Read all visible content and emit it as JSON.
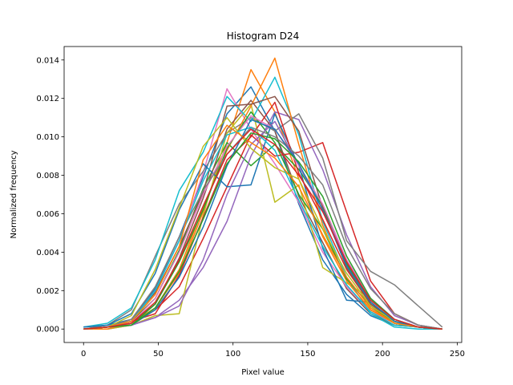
{
  "chart_data": {
    "type": "line",
    "title": "Histogram D24",
    "xlabel": "Pixel value",
    "ylabel": "Normalized frequency",
    "xlim": [
      -13,
      253
    ],
    "ylim": [
      -0.0007,
      0.0147
    ],
    "xticks": [
      0,
      50,
      100,
      150,
      200,
      250
    ],
    "xtick_labels": [
      "0",
      "50",
      "100",
      "150",
      "200",
      "250"
    ],
    "yticks": [
      0.0,
      0.002,
      0.004,
      0.006,
      0.008,
      0.01,
      0.012,
      0.014
    ],
    "ytick_labels": [
      "0.000",
      "0.002",
      "0.004",
      "0.006",
      "0.008",
      "0.010",
      "0.012",
      "0.014"
    ],
    "grid": false,
    "legend": false,
    "x": [
      0,
      16,
      32,
      48,
      64,
      80,
      96,
      112,
      128,
      144,
      160,
      176,
      192,
      208,
      224,
      240
    ],
    "series": [
      {
        "color": "#1f77b4",
        "values": [
          0.0001,
          0.0002,
          0.0005,
          0.0021,
          0.0048,
          0.0079,
          0.0112,
          0.0126,
          0.0103,
          0.0065,
          0.0036,
          0.0018,
          0.0007,
          0.0002,
          0.0001,
          0.0
        ]
      },
      {
        "color": "#ff7f0e",
        "values": [
          0.0,
          0.0001,
          0.0003,
          0.0011,
          0.0029,
          0.0061,
          0.0097,
          0.0135,
          0.0113,
          0.0078,
          0.0048,
          0.0025,
          0.001,
          0.0003,
          0.0001,
          0.0
        ]
      },
      {
        "color": "#2ca02c",
        "values": [
          0.0,
          0.0001,
          0.0004,
          0.0016,
          0.0041,
          0.0073,
          0.0097,
          0.0085,
          0.0096,
          0.0083,
          0.0064,
          0.0034,
          0.0014,
          0.0004,
          0.0001,
          0.0
        ]
      },
      {
        "color": "#d62728",
        "values": [
          0.0,
          0.0001,
          0.0002,
          0.001,
          0.0022,
          0.0047,
          0.0074,
          0.0101,
          0.009,
          0.0092,
          0.0097,
          0.0061,
          0.0025,
          0.0008,
          0.0002,
          0.0
        ]
      },
      {
        "color": "#9467bd",
        "values": [
          0.0,
          0.0,
          0.0002,
          0.0006,
          0.0015,
          0.0032,
          0.0056,
          0.009,
          0.0113,
          0.0109,
          0.0083,
          0.0049,
          0.0022,
          0.0007,
          0.0002,
          0.0
        ]
      },
      {
        "color": "#8c564b",
        "values": [
          0.0,
          0.0001,
          0.0003,
          0.0013,
          0.0037,
          0.0068,
          0.0104,
          0.0119,
          0.0103,
          0.0069,
          0.0045,
          0.0021,
          0.0008,
          0.0002,
          0.0001,
          0.0
        ]
      },
      {
        "color": "#e377c2",
        "values": [
          0.0,
          0.0001,
          0.0004,
          0.002,
          0.0046,
          0.0081,
          0.0125,
          0.0104,
          0.0086,
          0.0066,
          0.004,
          0.0022,
          0.0009,
          0.0003,
          0.0001,
          0.0
        ]
      },
      {
        "color": "#7f7f7f",
        "values": [
          0.0,
          0.0002,
          0.001,
          0.0038,
          0.0065,
          0.0082,
          0.0102,
          0.011,
          0.0103,
          0.0112,
          0.0089,
          0.0046,
          0.003,
          0.0023,
          0.0012,
          0.0001
        ]
      },
      {
        "color": "#bcbd22",
        "values": [
          0.0,
          0.0,
          0.0002,
          0.0007,
          0.0008,
          0.0059,
          0.0102,
          0.0117,
          0.0066,
          0.0075,
          0.0032,
          0.0024,
          0.0016,
          0.0004,
          0.0001,
          0.0
        ]
      },
      {
        "color": "#17becf",
        "values": [
          0.0001,
          0.0003,
          0.0011,
          0.0036,
          0.0072,
          0.0092,
          0.0121,
          0.0108,
          0.0131,
          0.0101,
          0.0056,
          0.0027,
          0.0008,
          0.0001,
          0.0,
          0.0
        ]
      },
      {
        "color": "#1f77b4",
        "values": [
          0.0001,
          0.0002,
          0.0008,
          0.0029,
          0.0062,
          0.0086,
          0.0074,
          0.0075,
          0.0112,
          0.0085,
          0.0042,
          0.0015,
          0.0014,
          0.0004,
          0.0001,
          0.0
        ]
      },
      {
        "color": "#ff7f0e",
        "values": [
          0.0,
          0.0,
          0.0003,
          0.0011,
          0.0031,
          0.0063,
          0.0093,
          0.0116,
          0.0141,
          0.0096,
          0.0054,
          0.0025,
          0.001,
          0.0003,
          0.0001,
          0.0
        ]
      },
      {
        "color": "#2ca02c",
        "values": [
          0.0,
          0.0001,
          0.0002,
          0.0013,
          0.0035,
          0.0062,
          0.0094,
          0.0113,
          0.0097,
          0.007,
          0.0052,
          0.0026,
          0.0012,
          0.0003,
          0.0001,
          0.0
        ]
      },
      {
        "color": "#d62728",
        "values": [
          0.0,
          0.0001,
          0.0004,
          0.0008,
          0.0028,
          0.0058,
          0.0088,
          0.01,
          0.0118,
          0.0081,
          0.0057,
          0.0031,
          0.0013,
          0.0004,
          0.0001,
          0.0
        ]
      },
      {
        "color": "#9467bd",
        "values": [
          0.0,
          0.0001,
          0.0002,
          0.0006,
          0.0012,
          0.0036,
          0.007,
          0.0096,
          0.0108,
          0.0085,
          0.0062,
          0.0036,
          0.0016,
          0.0005,
          0.0001,
          0.0
        ]
      },
      {
        "color": "#8c564b",
        "values": [
          0.0,
          0.0001,
          0.0005,
          0.0019,
          0.0043,
          0.0071,
          0.0116,
          0.0117,
          0.0121,
          0.0103,
          0.0063,
          0.0032,
          0.0013,
          0.0004,
          0.0001,
          0.0
        ]
      },
      {
        "color": "#e377c2",
        "values": [
          0.0,
          0.0001,
          0.0003,
          0.0016,
          0.004,
          0.007,
          0.0095,
          0.0111,
          0.0104,
          0.0085,
          0.0065,
          0.0036,
          0.0016,
          0.0005,
          0.0001,
          0.0
        ]
      },
      {
        "color": "#7f7f7f",
        "values": [
          0.0,
          0.0001,
          0.0005,
          0.0022,
          0.0048,
          0.0072,
          0.0091,
          0.0105,
          0.01,
          0.009,
          0.0075,
          0.0043,
          0.0021,
          0.0008,
          0.0002,
          0.0
        ]
      },
      {
        "color": "#bcbd22",
        "values": [
          0.0,
          0.0001,
          0.0007,
          0.0031,
          0.0063,
          0.0095,
          0.011,
          0.0094,
          0.0084,
          0.0078,
          0.0052,
          0.0029,
          0.0012,
          0.0004,
          0.0001,
          0.0
        ]
      },
      {
        "color": "#17becf",
        "values": [
          0.0,
          0.0001,
          0.0004,
          0.002,
          0.0046,
          0.0077,
          0.0101,
          0.0105,
          0.0093,
          0.0067,
          0.0043,
          0.0023,
          0.0009,
          0.0002,
          0.0001,
          0.0
        ]
      },
      {
        "color": "#1f77b4",
        "values": [
          0.0,
          0.0001,
          0.0002,
          0.001,
          0.0027,
          0.0053,
          0.0085,
          0.0109,
          0.0104,
          0.0086,
          0.0062,
          0.0033,
          0.0014,
          0.0004,
          0.0001,
          0.0
        ]
      },
      {
        "color": "#ff7f0e",
        "values": [
          0.0,
          0.0001,
          0.0004,
          0.0018,
          0.0043,
          0.0088,
          0.0106,
          0.0097,
          0.0089,
          0.0074,
          0.0049,
          0.0027,
          0.0011,
          0.0003,
          0.0001,
          0.0
        ]
      },
      {
        "color": "#2ca02c",
        "values": [
          0.0,
          0.0001,
          0.0002,
          0.0011,
          0.003,
          0.0057,
          0.0086,
          0.0102,
          0.0099,
          0.0087,
          0.0069,
          0.0038,
          0.0016,
          0.0005,
          0.0001,
          0.0
        ]
      },
      {
        "color": "#d62728",
        "values": [
          0.0,
          0.0001,
          0.0003,
          0.0014,
          0.0036,
          0.0064,
          0.0091,
          0.0104,
          0.0096,
          0.008,
          0.0061,
          0.0035,
          0.0015,
          0.0005,
          0.0001,
          0.0
        ]
      }
    ]
  }
}
